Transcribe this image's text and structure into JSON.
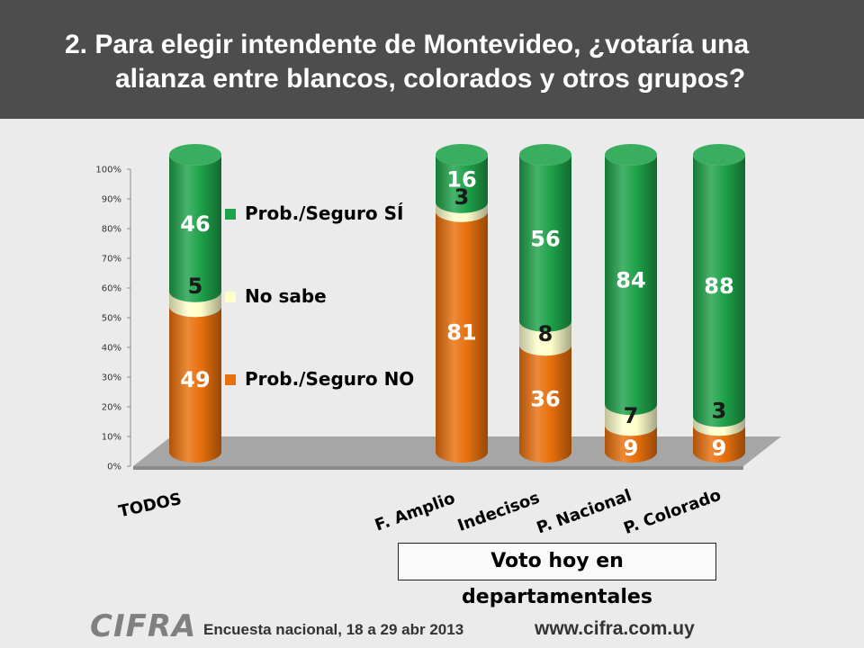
{
  "header": {
    "title_line1": "2. Para elegir intendente de Montevideo, ¿votaría una",
    "title_line2": "alianza entre blancos, colorados y otros grupos?"
  },
  "chart_data": {
    "type": "bar",
    "stacked": true,
    "categories": [
      "TODOS",
      "F. Amplio",
      "Indecisos",
      "P. Nacional",
      "P. Colorado"
    ],
    "series": [
      {
        "name": "Prob./Seguro NO",
        "color": "#e8700c",
        "values": [
          49,
          81,
          36,
          9,
          9
        ]
      },
      {
        "name": "No sabe",
        "color": "#ffffcc",
        "values": [
          5,
          3,
          8,
          7,
          3
        ]
      },
      {
        "name": "Prob./Seguro SÍ",
        "color": "#1ea24a",
        "values": [
          46,
          16,
          56,
          84,
          88
        ]
      }
    ],
    "yticks": [
      "0%",
      "10%",
      "20%",
      "30%",
      "40%",
      "50%",
      "60%",
      "70%",
      "80%",
      "90%",
      "100%"
    ],
    "ylim": [
      0,
      100
    ],
    "legend": [
      "Prob./Seguro SÍ",
      "No sabe",
      "Prob./Seguro NO"
    ],
    "subtitle": "Voto hoy en departamentales"
  },
  "footer": {
    "logo": "CIFRA",
    "survey": "Encuesta nacional,   18 a 29 abr 2013",
    "url": "www.cifra.com.uy"
  }
}
